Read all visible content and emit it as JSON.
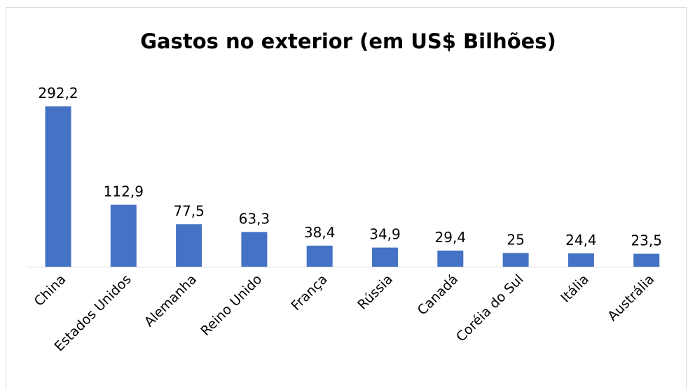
{
  "chart_data": {
    "type": "bar",
    "title": "Gastos no exterior (em US$ Bilhões)",
    "categories": [
      "China",
      "Estados Unidos",
      "Alemanha",
      "Reino Unido",
      "França",
      "Rússia",
      "Canadá",
      "Coréia do Sul",
      "Itália",
      "Austrália"
    ],
    "values": [
      292.2,
      112.9,
      77.5,
      63.3,
      38.4,
      34.9,
      29.4,
      25,
      24.4,
      23.5
    ],
    "value_labels": [
      "292,2",
      "112,9",
      "77,5",
      "63,3",
      "38,4",
      "34,9",
      "29,4",
      "25",
      "24,4",
      "23,5"
    ],
    "color": "#4472c4"
  }
}
